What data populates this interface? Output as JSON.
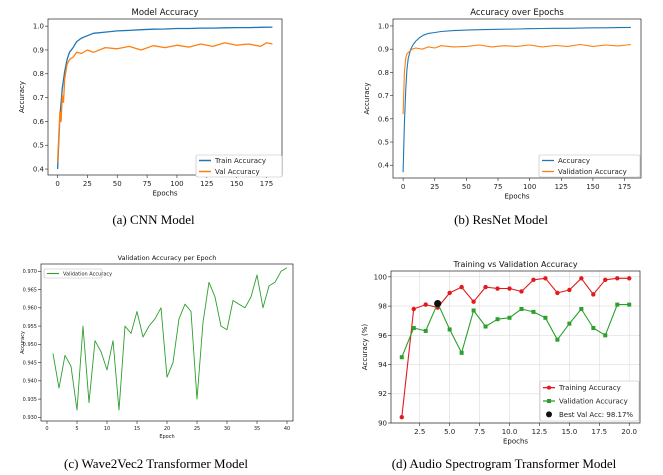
{
  "chart_data": [
    {
      "id": "a",
      "type": "line",
      "title": "Model Accuracy",
      "xlabel": "Epochs",
      "ylabel": "Accuracy",
      "xlim": [
        -8,
        188
      ],
      "ylim": [
        0.375,
        1.03
      ],
      "xticks": [
        "0",
        "25",
        "50",
        "75",
        "100",
        "125",
        "150",
        "175"
      ],
      "xtick_values": [
        0,
        25,
        50,
        75,
        100,
        125,
        150,
        175
      ],
      "yticks": [
        "0.4",
        "0.5",
        "0.6",
        "0.7",
        "0.8",
        "0.9",
        "1.0"
      ],
      "ytick_values": [
        0.4,
        0.5,
        0.6,
        0.7,
        0.8,
        0.9,
        1.0
      ],
      "legend_position": "lower-right",
      "grid": false,
      "series": [
        {
          "name": "Train Accuracy",
          "color": "#1f77b4",
          "x": [
            0,
            2,
            4,
            6,
            8,
            10,
            13,
            16,
            20,
            25,
            30,
            40,
            50,
            60,
            70,
            80,
            90,
            100,
            110,
            120,
            130,
            140,
            150,
            160,
            170,
            180
          ],
          "y": [
            0.4,
            0.62,
            0.74,
            0.81,
            0.86,
            0.89,
            0.91,
            0.935,
            0.95,
            0.96,
            0.97,
            0.975,
            0.98,
            0.982,
            0.985,
            0.987,
            0.988,
            0.99,
            0.99,
            0.992,
            0.992,
            0.993,
            0.994,
            0.994,
            0.995,
            0.996
          ]
        },
        {
          "name": "Val Accuracy",
          "color": "#ff7f0e",
          "x": [
            0,
            2,
            3,
            4,
            5,
            6,
            8,
            10,
            13,
            16,
            20,
            25,
            30,
            40,
            50,
            60,
            70,
            80,
            90,
            100,
            110,
            120,
            130,
            140,
            150,
            160,
            170,
            175,
            180
          ],
          "y": [
            0.43,
            0.64,
            0.6,
            0.71,
            0.68,
            0.78,
            0.84,
            0.86,
            0.87,
            0.89,
            0.885,
            0.9,
            0.89,
            0.91,
            0.905,
            0.915,
            0.9,
            0.918,
            0.91,
            0.92,
            0.912,
            0.925,
            0.915,
            0.93,
            0.92,
            0.925,
            0.915,
            0.93,
            0.925
          ]
        }
      ]
    },
    {
      "id": "b",
      "type": "line",
      "title": "Accuracy over Epochs",
      "xlabel": "Epochs",
      "ylabel": "Accuracy",
      "xlim": [
        -8,
        188
      ],
      "ylim": [
        0.345,
        1.03
      ],
      "xticks": [
        "0",
        "25",
        "50",
        "75",
        "100",
        "125",
        "150",
        "175"
      ],
      "xtick_values": [
        0,
        25,
        50,
        75,
        100,
        125,
        150,
        175
      ],
      "yticks": [
        "0.4",
        "0.5",
        "0.6",
        "0.7",
        "0.8",
        "0.9",
        "1.0"
      ],
      "ytick_values": [
        0.4,
        0.5,
        0.6,
        0.7,
        0.8,
        0.9,
        1.0
      ],
      "legend_position": "lower-right",
      "grid": false,
      "series": [
        {
          "name": "Accuracy",
          "color": "#1f77b4",
          "x": [
            0,
            1,
            2,
            3,
            4,
            6,
            8,
            10,
            13,
            16,
            20,
            25,
            30,
            40,
            50,
            60,
            70,
            80,
            90,
            100,
            110,
            120,
            130,
            140,
            150,
            160,
            170,
            180
          ],
          "y": [
            0.37,
            0.58,
            0.72,
            0.81,
            0.86,
            0.9,
            0.92,
            0.935,
            0.95,
            0.96,
            0.968,
            0.972,
            0.976,
            0.98,
            0.982,
            0.984,
            0.985,
            0.986,
            0.987,
            0.988,
            0.989,
            0.99,
            0.99,
            0.991,
            0.992,
            0.992,
            0.993,
            0.994
          ]
        },
        {
          "name": "Validation Accuracy",
          "color": "#ff7f0e",
          "x": [
            0,
            1,
            2,
            3,
            5,
            7,
            10,
            15,
            20,
            25,
            30,
            40,
            50,
            60,
            70,
            80,
            90,
            100,
            110,
            120,
            130,
            140,
            150,
            160,
            170,
            180
          ],
          "y": [
            0.62,
            0.8,
            0.86,
            0.88,
            0.89,
            0.9,
            0.905,
            0.9,
            0.91,
            0.905,
            0.915,
            0.91,
            0.912,
            0.918,
            0.91,
            0.915,
            0.912,
            0.918,
            0.91,
            0.916,
            0.912,
            0.92,
            0.912,
            0.918,
            0.914,
            0.92
          ]
        }
      ]
    },
    {
      "id": "c",
      "type": "line",
      "title": "Validation Accuracy per Epoch",
      "xlabel": "Epoch",
      "ylabel": "Accuracy",
      "xlim": [
        -1,
        41
      ],
      "ylim": [
        0.929,
        0.972
      ],
      "xticks": [
        "0",
        "5",
        "10",
        "15",
        "20",
        "25",
        "30",
        "35",
        "40"
      ],
      "xtick_values": [
        0,
        5,
        10,
        15,
        20,
        25,
        30,
        35,
        40
      ],
      "yticks": [
        "0.930",
        "0.935",
        "0.940",
        "0.945",
        "0.950",
        "0.955",
        "0.960",
        "0.965",
        "0.970"
      ],
      "ytick_values": [
        0.93,
        0.935,
        0.94,
        0.945,
        0.95,
        0.955,
        0.96,
        0.965,
        0.97
      ],
      "legend_position": "top-left",
      "grid": false,
      "series": [
        {
          "name": "Validation Accuracy",
          "color": "#2ca02c",
          "x": [
            1,
            2,
            3,
            4,
            5,
            6,
            7,
            8,
            9,
            10,
            11,
            12,
            13,
            14,
            15,
            16,
            17,
            18,
            19,
            20,
            21,
            22,
            23,
            24,
            25,
            26,
            27,
            28,
            29,
            30,
            31,
            32,
            33,
            34,
            35,
            36,
            37,
            38,
            39,
            40
          ],
          "y": [
            0.9475,
            0.938,
            0.947,
            0.944,
            0.932,
            0.955,
            0.934,
            0.951,
            0.948,
            0.943,
            0.951,
            0.932,
            0.955,
            0.953,
            0.959,
            0.952,
            0.955,
            0.957,
            0.96,
            0.941,
            0.945,
            0.957,
            0.961,
            0.959,
            0.935,
            0.956,
            0.967,
            0.963,
            0.955,
            0.954,
            0.962,
            0.961,
            0.96,
            0.963,
            0.969,
            0.96,
            0.966,
            0.967,
            0.97,
            0.971
          ]
        }
      ]
    },
    {
      "id": "d",
      "type": "line",
      "title": "Training vs Validation Accuracy",
      "xlabel": "Epochs",
      "ylabel": "Accuracy (%)",
      "xlim": [
        0.1,
        20.9
      ],
      "ylim": [
        90,
        100.4
      ],
      "xticks": [
        "2.5",
        "5.0",
        "7.5",
        "10.0",
        "12.5",
        "15.0",
        "17.5",
        "20.0"
      ],
      "xtick_values": [
        2.5,
        5,
        7.5,
        10,
        12.5,
        15,
        17.5,
        20
      ],
      "yticks": [
        "90",
        "92",
        "94",
        "96",
        "98",
        "100"
      ],
      "ytick_values": [
        90,
        92,
        94,
        96,
        98,
        100
      ],
      "legend_position": "lower-right",
      "grid": true,
      "series": [
        {
          "name": "Training Accuracy",
          "color": "#e31a1c",
          "marker": "circle",
          "x": [
            1,
            2,
            3,
            4,
            5,
            6,
            7,
            8,
            9,
            10,
            11,
            12,
            13,
            14,
            15,
            16,
            17,
            18,
            19,
            20
          ],
          "y": [
            90.4,
            97.8,
            98.1,
            97.9,
            98.9,
            99.3,
            98.3,
            99.3,
            99.2,
            99.2,
            99.0,
            99.8,
            99.9,
            98.9,
            99.1,
            99.9,
            98.8,
            99.8,
            99.9,
            99.9
          ]
        },
        {
          "name": "Validation Accuracy",
          "color": "#2ca02c",
          "marker": "square",
          "x": [
            1,
            2,
            3,
            4,
            5,
            6,
            7,
            8,
            9,
            10,
            11,
            12,
            13,
            14,
            15,
            16,
            17,
            18,
            19,
            20
          ],
          "y": [
            94.5,
            96.5,
            96.3,
            98.2,
            96.4,
            94.8,
            97.7,
            96.6,
            97.1,
            97.2,
            97.8,
            97.6,
            97.2,
            95.7,
            96.8,
            97.8,
            96.5,
            96.0,
            98.1,
            98.1
          ]
        }
      ],
      "best": {
        "label": "Best Val Acc: 98.17%",
        "x": 4,
        "y": 98.17,
        "color": "#111111"
      }
    }
  ],
  "captions": {
    "a": "(a) CNN Model",
    "b": "(b) ResNet Model",
    "c": "(c) Wave2Vec2 Transformer Model",
    "d": "(d) Audio Spectrogram Transformer Model"
  }
}
